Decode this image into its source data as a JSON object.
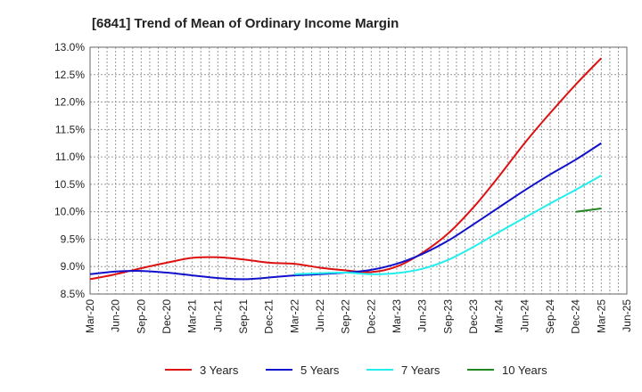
{
  "chart_data": {
    "type": "line",
    "title": "[6841]  Trend of Mean of Ordinary Income Margin",
    "xlabel": "",
    "ylabel": "",
    "x_ticks": [
      "Mar-20",
      "Jun-20",
      "Sep-20",
      "Dec-20",
      "Mar-21",
      "Jun-21",
      "Sep-21",
      "Dec-21",
      "Mar-22",
      "Jun-22",
      "Sep-22",
      "Dec-22",
      "Mar-23",
      "Jun-23",
      "Sep-23",
      "Dec-23",
      "Mar-24",
      "Jun-24",
      "Sep-24",
      "Dec-24",
      "Mar-25",
      "Jun-25"
    ],
    "y_ticks": [
      "8.5%",
      "9.0%",
      "9.5%",
      "10.0%",
      "10.5%",
      "11.0%",
      "11.5%",
      "12.0%",
      "12.5%",
      "13.0%"
    ],
    "ylim": [
      8.5,
      13.0
    ],
    "grid": true,
    "legend_position": "bottom",
    "series": [
      {
        "name": "3 Years",
        "color": "#dd1111",
        "x": [
          "Mar-20",
          "Jun-20",
          "Sep-20",
          "Dec-20",
          "Mar-21",
          "Jun-21",
          "Sep-21",
          "Dec-21",
          "Mar-22",
          "Jun-22",
          "Sep-22",
          "Dec-22",
          "Mar-23",
          "Jun-23",
          "Sep-23",
          "Dec-23",
          "Mar-24",
          "Jun-24",
          "Sep-24",
          "Dec-24",
          "Mar-25"
        ],
        "values": [
          8.77,
          8.86,
          8.97,
          9.07,
          9.16,
          9.17,
          9.13,
          9.07,
          9.05,
          8.98,
          8.93,
          8.9,
          9.0,
          9.25,
          9.6,
          10.08,
          10.65,
          11.25,
          11.8,
          12.32,
          12.8
        ]
      },
      {
        "name": "5 Years",
        "color": "#1111cc",
        "x": [
          "Mar-20",
          "Jun-20",
          "Sep-20",
          "Dec-20",
          "Mar-21",
          "Jun-21",
          "Sep-21",
          "Dec-21",
          "Mar-22",
          "Jun-22",
          "Sep-22",
          "Dec-22",
          "Mar-23",
          "Jun-23",
          "Sep-23",
          "Dec-23",
          "Mar-24",
          "Jun-24",
          "Sep-24",
          "Dec-24",
          "Mar-25"
        ],
        "values": [
          8.86,
          8.91,
          8.92,
          8.89,
          8.84,
          8.79,
          8.77,
          8.8,
          8.84,
          8.86,
          8.89,
          8.94,
          9.05,
          9.23,
          9.47,
          9.77,
          10.08,
          10.39,
          10.68,
          10.95,
          11.25
        ]
      },
      {
        "name": "7 Years",
        "color": "#22eeee",
        "x": [
          "Mar-22",
          "Jun-22",
          "Sep-22",
          "Dec-22",
          "Mar-23",
          "Jun-23",
          "Sep-23",
          "Dec-23",
          "Mar-24",
          "Jun-24",
          "Sep-24",
          "Dec-24",
          "Mar-25"
        ],
        "values": [
          8.86,
          8.88,
          8.89,
          8.86,
          8.88,
          8.96,
          9.12,
          9.36,
          9.63,
          9.89,
          10.15,
          10.4,
          10.66
        ]
      },
      {
        "name": "10 Years",
        "color": "#228822",
        "x": [
          "Dec-24",
          "Mar-25"
        ],
        "values": [
          10.0,
          10.06
        ]
      }
    ]
  }
}
